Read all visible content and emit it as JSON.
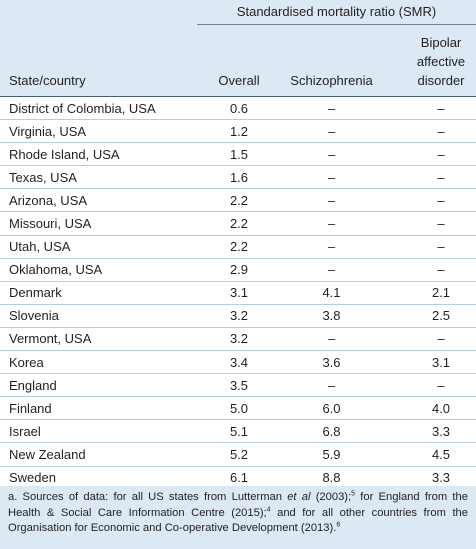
{
  "header": {
    "group_title": "Standardised mortality ratio (SMR)",
    "columns": [
      "State/country",
      "Overall",
      "Schizophrenia",
      "Bipolar affective disorder"
    ]
  },
  "table": {
    "rows": [
      [
        "District of Colombia, USA",
        "0.6",
        "–",
        "–"
      ],
      [
        "Virginia, USA",
        "1.2",
        "–",
        "–"
      ],
      [
        "Rhode Island, USA",
        "1.5",
        "–",
        "–"
      ],
      [
        "Texas, USA",
        "1.6",
        "–",
        "–"
      ],
      [
        "Arizona, USA",
        "2.2",
        "–",
        "–"
      ],
      [
        "Missouri, USA",
        "2.2",
        "–",
        "–"
      ],
      [
        "Utah, USA",
        "2.2",
        "–",
        "–"
      ],
      [
        "Oklahoma, USA",
        "2.9",
        "–",
        "–"
      ],
      [
        "Denmark",
        "3.1",
        "4.1",
        "2.1"
      ],
      [
        "Slovenia",
        "3.2",
        "3.8",
        "2.5"
      ],
      [
        "Vermont, USA",
        "3.2",
        "–",
        "–"
      ],
      [
        "Korea",
        "3.4",
        "3.6",
        "3.1"
      ],
      [
        "England",
        "3.5",
        "–",
        "–"
      ],
      [
        "Finland",
        "5.0",
        "6.0",
        "4.0"
      ],
      [
        "Israel",
        "5.1",
        "6.8",
        "3.3"
      ],
      [
        "New Zealand",
        "5.2",
        "5.9",
        "4.5"
      ],
      [
        "Sweden",
        "6.1",
        "8.8",
        "3.3"
      ]
    ]
  },
  "footnote": {
    "parts": [
      "a. Sources of data: for all US states from Lutterman ",
      "et al",
      " (2003);",
      "5",
      " for England from the Health & Social Care Information Centre (2015);",
      "4",
      " and for all other countries from the Organisation for Economic and Co-operative Development (2013).",
      "6"
    ]
  }
}
